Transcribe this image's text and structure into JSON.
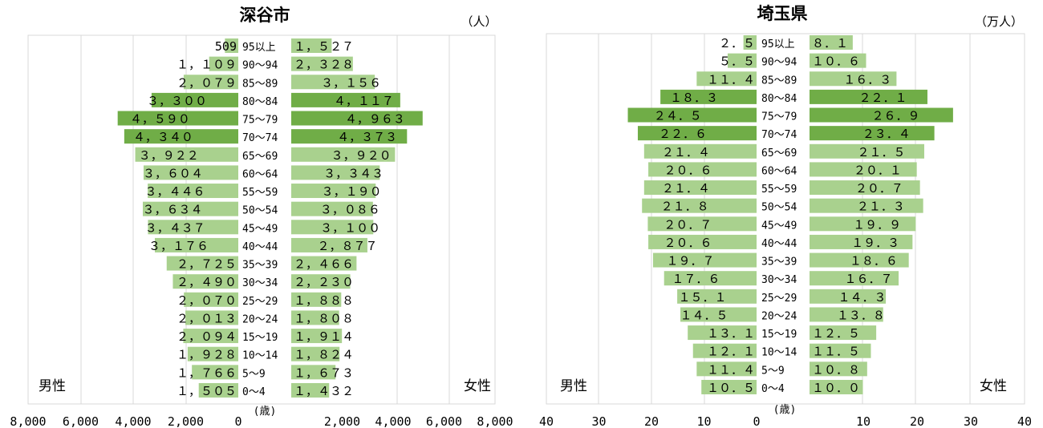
{
  "chart_data": [
    {
      "type": "bar",
      "title": "深谷市",
      "unit": "（人）",
      "left_label": "男性",
      "right_label": "女性",
      "age_axis_label": "(歳)",
      "value_format": "comma_fullwidth",
      "xlim": [
        0,
        8000
      ],
      "x_ticks": [
        "8,000",
        "6,000",
        "4,000",
        "2,000",
        "0",
        "2,000",
        "4,000",
        "6,000",
        "8,000"
      ],
      "categories": [
        "95以上",
        "90～94",
        "85～89",
        "80～84",
        "75～79",
        "70～74",
        "65～69",
        "60～64",
        "55～59",
        "50～54",
        "45～49",
        "40～44",
        "35～39",
        "30～34",
        "25～29",
        "20～24",
        "15～19",
        "10～14",
        "5～9",
        "0～4"
      ],
      "series": [
        {
          "name": "男性",
          "values": [
            509,
            1109,
            2079,
            3300,
            4590,
            4340,
            3922,
            3604,
            3446,
            3634,
            3437,
            3176,
            2725,
            2490,
            2070,
            2013,
            2094,
            1928,
            1766,
            1505
          ]
        },
        {
          "name": "女性",
          "values": [
            1527,
            2328,
            3156,
            4117,
            4963,
            4373,
            3920,
            3343,
            3190,
            3086,
            3100,
            2877,
            2466,
            2230,
            1888,
            1808,
            1914,
            1824,
            1673,
            1432
          ]
        }
      ],
      "highlight_categories": [
        "80～84",
        "75～79",
        "70～74"
      ],
      "colors": {
        "bar": "#a9d18e",
        "highlight": "#70ad47"
      }
    },
    {
      "type": "bar",
      "title": "埼玉県",
      "unit": "（万人）",
      "left_label": "男性",
      "right_label": "女性",
      "age_axis_label": "(歳)",
      "value_format": "decimal_fullwidth",
      "xlim": [
        0,
        40
      ],
      "x_ticks": [
        "40",
        "30",
        "20",
        "10",
        "0",
        "10",
        "20",
        "30",
        "40"
      ],
      "categories": [
        "95以上",
        "90～94",
        "85～89",
        "80～84",
        "75～79",
        "70～74",
        "65～69",
        "60～64",
        "55～59",
        "50～54",
        "45～49",
        "40～44",
        "35～39",
        "30～34",
        "25～29",
        "20～24",
        "15～19",
        "10～14",
        "5～9",
        "0～4"
      ],
      "series": [
        {
          "name": "男性",
          "values": [
            2.5,
            5.5,
            11.4,
            18.3,
            24.5,
            22.6,
            21.4,
            20.6,
            21.4,
            21.8,
            20.7,
            20.6,
            19.7,
            17.6,
            15.1,
            14.5,
            13.1,
            12.1,
            11.4,
            10.5
          ]
        },
        {
          "name": "女性",
          "values": [
            8.1,
            10.6,
            16.3,
            22.1,
            26.9,
            23.4,
            21.5,
            20.1,
            20.7,
            21.3,
            19.9,
            19.3,
            18.6,
            16.7,
            14.3,
            13.8,
            12.5,
            11.5,
            10.8,
            10.0
          ]
        }
      ],
      "highlight_categories": [
        "80～84",
        "75～79",
        "70～74"
      ],
      "colors": {
        "bar": "#a9d18e",
        "highlight": "#70ad47"
      }
    }
  ]
}
